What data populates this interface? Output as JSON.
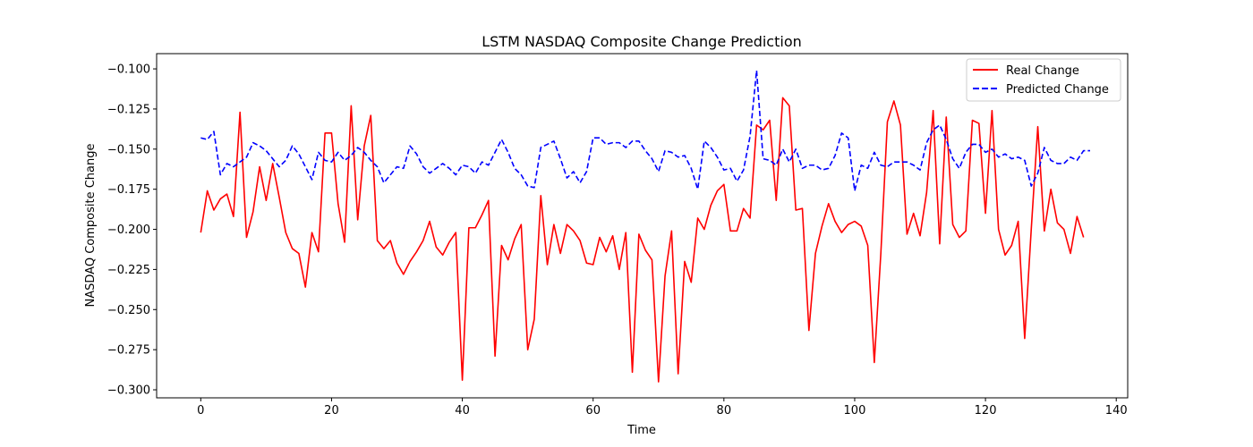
{
  "chart_data": {
    "type": "line",
    "title": "LSTM NASDAQ Composite Change Prediction",
    "xlabel": "Time",
    "ylabel": "NASDAQ Composite Change",
    "xlim": [
      -6.75,
      141.75
    ],
    "ylim": [
      -0.305,
      -0.0905
    ],
    "x_ticks": [
      0,
      20,
      40,
      60,
      80,
      100,
      120,
      140
    ],
    "x_tick_labels": [
      "0",
      "20",
      "40",
      "60",
      "80",
      "100",
      "120",
      "140"
    ],
    "y_ticks": [
      -0.3,
      -0.275,
      -0.25,
      -0.225,
      -0.2,
      -0.175,
      -0.15,
      -0.125,
      -0.1
    ],
    "y_tick_labels": [
      "−0.300",
      "−0.275",
      "−0.250",
      "−0.225",
      "−0.200",
      "−0.175",
      "−0.150",
      "−0.125",
      "−0.100"
    ],
    "grid": false,
    "legend_position": "top-right",
    "series": [
      {
        "name": "Real Change",
        "color": "#ff0000",
        "style": "solid",
        "values": [
          -0.202,
          -0.176,
          -0.188,
          -0.181,
          -0.178,
          -0.192,
          -0.127,
          -0.205,
          -0.189,
          -0.161,
          -0.182,
          -0.159,
          -0.18,
          -0.202,
          -0.212,
          -0.215,
          -0.236,
          -0.202,
          -0.214,
          -0.14,
          -0.14,
          -0.184,
          -0.208,
          -0.123,
          -0.194,
          -0.148,
          -0.129,
          -0.207,
          -0.212,
          -0.207,
          -0.221,
          -0.228,
          -0.22,
          -0.214,
          -0.207,
          -0.195,
          -0.211,
          -0.216,
          -0.208,
          -0.202,
          -0.294,
          -0.199,
          -0.199,
          -0.191,
          -0.182,
          -0.279,
          -0.21,
          -0.219,
          -0.206,
          -0.197,
          -0.275,
          -0.256,
          -0.179,
          -0.222,
          -0.197,
          -0.215,
          -0.197,
          -0.201,
          -0.207,
          -0.221,
          -0.222,
          -0.205,
          -0.214,
          -0.204,
          -0.225,
          -0.202,
          -0.289,
          -0.203,
          -0.213,
          -0.219,
          -0.295,
          -0.229,
          -0.201,
          -0.29,
          -0.22,
          -0.233,
          -0.193,
          -0.2,
          -0.185,
          -0.176,
          -0.172,
          -0.201,
          -0.201,
          -0.187,
          -0.193,
          -0.135,
          -0.138,
          -0.132,
          -0.182,
          -0.118,
          -0.123,
          -0.188,
          -0.187,
          -0.263,
          -0.215,
          -0.198,
          -0.184,
          -0.195,
          -0.202,
          -0.197,
          -0.195,
          -0.198,
          -0.21,
          -0.283,
          -0.215,
          -0.133,
          -0.12,
          -0.135,
          -0.203,
          -0.19,
          -0.204,
          -0.177,
          -0.126,
          -0.209,
          -0.13,
          -0.197,
          -0.205,
          -0.201,
          -0.132,
          -0.134,
          -0.19,
          -0.126,
          -0.2,
          -0.216,
          -0.21,
          -0.195,
          -0.268,
          -0.2,
          -0.136,
          -0.201,
          -0.175,
          -0.196,
          -0.2,
          -0.215,
          -0.192,
          -0.205
        ]
      },
      {
        "name": "Predicted Change",
        "color": "#0000ff",
        "style": "dashed",
        "values": [
          -0.143,
          -0.144,
          -0.139,
          -0.166,
          -0.159,
          -0.161,
          -0.158,
          -0.155,
          -0.146,
          -0.148,
          -0.151,
          -0.156,
          -0.161,
          -0.157,
          -0.148,
          -0.153,
          -0.161,
          -0.169,
          -0.152,
          -0.157,
          -0.158,
          -0.152,
          -0.157,
          -0.154,
          -0.149,
          -0.152,
          -0.157,
          -0.161,
          -0.171,
          -0.166,
          -0.161,
          -0.162,
          -0.148,
          -0.153,
          -0.161,
          -0.165,
          -0.162,
          -0.159,
          -0.162,
          -0.166,
          -0.16,
          -0.161,
          -0.165,
          -0.158,
          -0.16,
          -0.152,
          -0.144,
          -0.152,
          -0.162,
          -0.166,
          -0.173,
          -0.174,
          -0.149,
          -0.147,
          -0.145,
          -0.156,
          -0.168,
          -0.164,
          -0.171,
          -0.164,
          -0.143,
          -0.143,
          -0.147,
          -0.146,
          -0.146,
          -0.149,
          -0.145,
          -0.145,
          -0.151,
          -0.156,
          -0.164,
          -0.151,
          -0.152,
          -0.155,
          -0.154,
          -0.162,
          -0.175,
          -0.145,
          -0.149,
          -0.155,
          -0.163,
          -0.162,
          -0.17,
          -0.163,
          -0.142,
          -0.101,
          -0.156,
          -0.157,
          -0.16,
          -0.15,
          -0.158,
          -0.15,
          -0.162,
          -0.16,
          -0.16,
          -0.163,
          -0.162,
          -0.154,
          -0.14,
          -0.143,
          -0.176,
          -0.16,
          -0.162,
          -0.152,
          -0.16,
          -0.161,
          -0.158,
          -0.158,
          -0.158,
          -0.16,
          -0.163,
          -0.146,
          -0.138,
          -0.135,
          -0.144,
          -0.156,
          -0.162,
          -0.152,
          -0.147,
          -0.147,
          -0.152,
          -0.15,
          -0.155,
          -0.153,
          -0.156,
          -0.155,
          -0.157,
          -0.173,
          -0.165,
          -0.149,
          -0.157,
          -0.159,
          -0.159,
          -0.155,
          -0.157,
          -0.151,
          -0.151
        ]
      }
    ]
  }
}
